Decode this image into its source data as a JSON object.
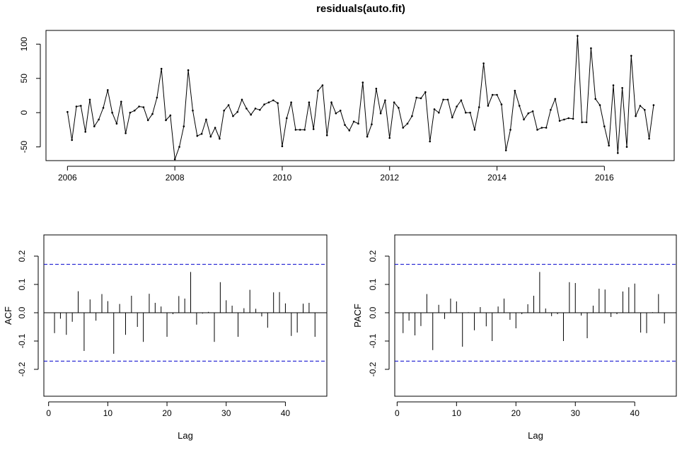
{
  "chart_data": [
    {
      "type": "line",
      "title": "residuals(auto.fit)",
      "xlabel": "",
      "ylabel": "",
      "xlim": [
        2005.6,
        2017.3
      ],
      "ylim": [
        -70,
        120
      ],
      "x_ticks": [
        2006,
        2008,
        2010,
        2012,
        2014,
        2016
      ],
      "y_ticks": [
        -50,
        0,
        50,
        100
      ],
      "x_start": 2006,
      "frequency": 12,
      "markers": true,
      "color": "#000000",
      "values": [
        1,
        -40,
        9,
        10,
        -28,
        19,
        -20,
        -10,
        7,
        33,
        0,
        -16,
        16,
        -30,
        0,
        3,
        9,
        8,
        -11,
        -2,
        22,
        64,
        -11,
        -4,
        -68,
        -50,
        -20,
        62,
        3,
        -34,
        -31,
        -10,
        -35,
        -22,
        -38,
        3,
        11,
        -5,
        1,
        19,
        6,
        -3,
        6,
        4,
        12,
        15,
        18,
        14,
        -49,
        -8,
        15,
        -25,
        -25,
        -25,
        15,
        -24,
        32,
        40,
        -33,
        15,
        -1,
        3,
        -18,
        -26,
        -13,
        -16,
        44,
        -35,
        -17,
        35,
        -1,
        18,
        -37,
        15,
        7,
        -22,
        -16,
        -5,
        22,
        21,
        30,
        -42,
        5,
        0,
        19,
        19,
        -7,
        9,
        18,
        0,
        0,
        -25,
        8,
        72,
        10,
        26,
        26,
        12,
        -55,
        -25,
        32,
        10,
        -10,
        -1,
        2,
        -25,
        -22,
        -22,
        4,
        20,
        -12,
        -10,
        -8,
        -9,
        112,
        -14,
        -14,
        94,
        20,
        11,
        -20,
        -48,
        40,
        -59,
        36,
        -50,
        83,
        -5,
        10,
        4,
        -38,
        11
      ]
    },
    {
      "type": "bar",
      "subtype": "acf",
      "xlabel": "Lag",
      "ylabel": "ACF",
      "xlim": [
        -0.8,
        47
      ],
      "ylim": [
        -0.295,
        0.275
      ],
      "x_ticks": [
        0,
        10,
        20,
        30,
        40
      ],
      "y_ticks": [
        -0.2,
        -0.1,
        0.0,
        0.1,
        0.2
      ],
      "confidence_band": 0.171,
      "band_color": "#0000cc",
      "lags": [
        1,
        2,
        3,
        4,
        5,
        6,
        7,
        8,
        9,
        10,
        11,
        12,
        13,
        14,
        15,
        16,
        17,
        18,
        19,
        20,
        21,
        22,
        23,
        24,
        25,
        26,
        27,
        28,
        29,
        30,
        31,
        32,
        33,
        34,
        35,
        36,
        37,
        38,
        39,
        40,
        41,
        42,
        43,
        44,
        45
      ],
      "values": [
        -0.072,
        -0.021,
        -0.078,
        -0.032,
        0.076,
        -0.135,
        0.047,
        -0.028,
        0.066,
        0.041,
        -0.145,
        0.031,
        -0.078,
        0.06,
        -0.05,
        -0.103,
        0.067,
        0.035,
        0.022,
        -0.085,
        -0.005,
        0.059,
        0.05,
        0.144,
        -0.042,
        -0.003,
        0.003,
        -0.103,
        0.108,
        0.044,
        0.025,
        -0.085,
        0.016,
        0.081,
        0.014,
        -0.013,
        -0.053,
        0.072,
        0.073,
        0.033,
        -0.082,
        -0.07,
        0.032,
        0.035,
        -0.085
      ]
    },
    {
      "type": "bar",
      "subtype": "pacf",
      "xlabel": "Lag",
      "ylabel": "PACF",
      "xlim": [
        -0.4,
        47
      ],
      "ylim": [
        -0.295,
        0.275
      ],
      "x_ticks": [
        0,
        10,
        20,
        30,
        40
      ],
      "y_ticks": [
        -0.2,
        -0.1,
        0.0,
        0.1,
        0.2
      ],
      "confidence_band": 0.171,
      "band_color": "#0000cc",
      "lags": [
        1,
        2,
        3,
        4,
        5,
        6,
        7,
        8,
        9,
        10,
        11,
        12,
        13,
        14,
        15,
        16,
        17,
        18,
        19,
        20,
        21,
        22,
        23,
        24,
        25,
        26,
        27,
        28,
        29,
        30,
        31,
        32,
        33,
        34,
        35,
        36,
        37,
        38,
        39,
        40,
        41,
        42,
        43,
        44,
        45
      ],
      "values": [
        -0.072,
        -0.028,
        -0.08,
        -0.047,
        0.066,
        -0.132,
        0.028,
        -0.022,
        0.05,
        0.04,
        -0.12,
        0.002,
        -0.062,
        0.02,
        -0.048,
        -0.1,
        0.022,
        0.05,
        -0.025,
        -0.055,
        -0.005,
        0.03,
        0.06,
        0.144,
        0.015,
        -0.012,
        -0.005,
        -0.1,
        0.108,
        0.105,
        -0.01,
        -0.09,
        0.025,
        0.085,
        0.082,
        -0.015,
        -0.005,
        0.075,
        0.09,
        0.103,
        -0.07,
        -0.072,
        0.002,
        0.066,
        -0.038
      ]
    }
  ]
}
